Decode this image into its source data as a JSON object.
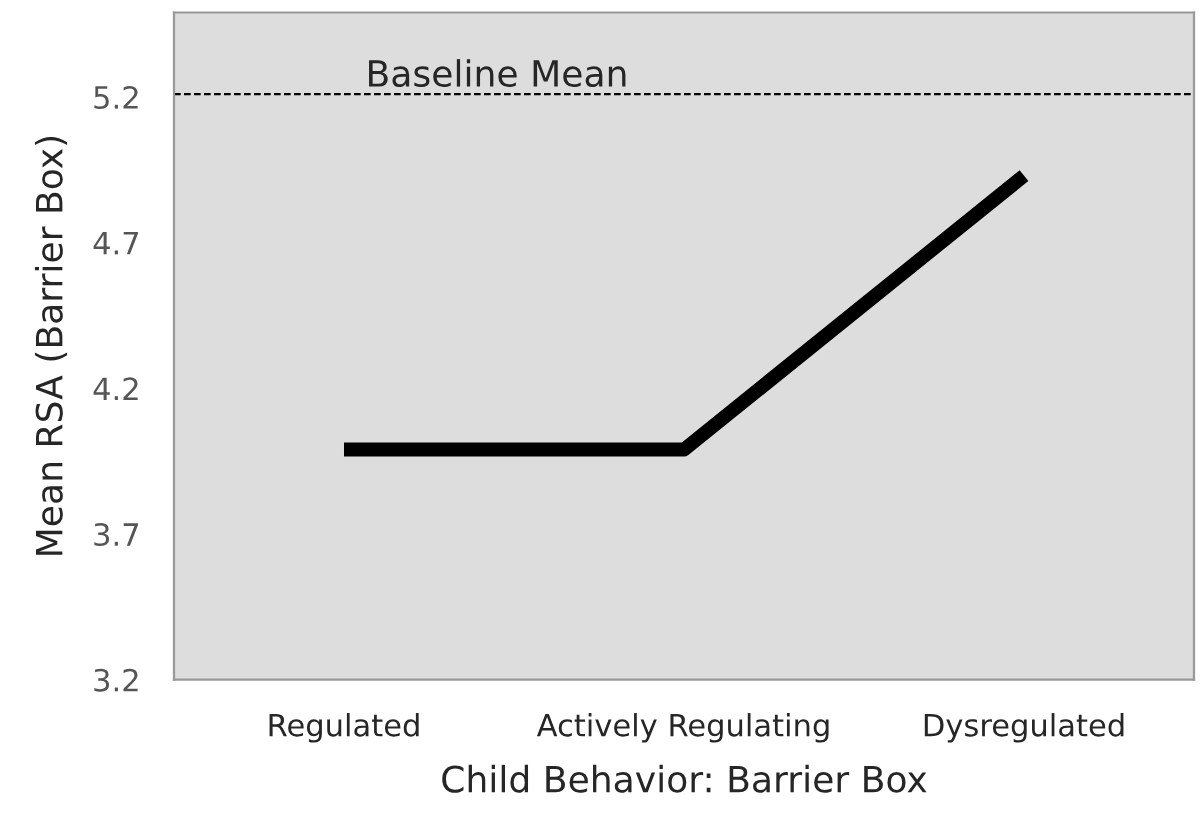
{
  "chart_data": {
    "type": "line",
    "xlabel": "Child Behavior: Barrier Box",
    "ylabel": "Mean RSA (Barrier Box)",
    "categories": [
      "Regulated",
      "Actively Regulating",
      "Dysregulated"
    ],
    "series": [
      {
        "color": "#000000",
        "values": [
          3.99,
          3.99,
          4.93
        ]
      }
    ],
    "ylim": [
      3.2,
      5.49
    ],
    "yticks": [
      3.2,
      3.7,
      4.2,
      4.7,
      5.2
    ],
    "ref_lines": [
      {
        "axis": "y",
        "value": 5.21,
        "label": "Baseline Mean",
        "color": "#000000",
        "line_style": "dashed"
      }
    ],
    "grid": false,
    "legend": false,
    "marker": "none",
    "line_style": "solid"
  }
}
